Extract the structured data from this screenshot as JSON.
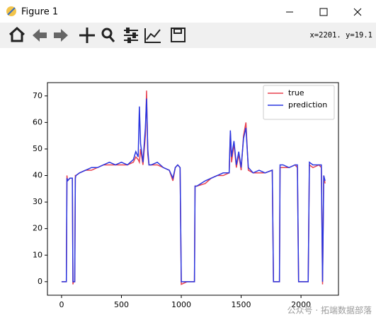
{
  "window": {
    "title": "Figure 1",
    "status": "x=2201.  y=19.1"
  },
  "watermark": "公众号 · 拓端数据部落",
  "chart_data": {
    "type": "line",
    "x": [
      0,
      40,
      45,
      50,
      70,
      90,
      95,
      100,
      110,
      115,
      120,
      150,
      200,
      250,
      300,
      350,
      400,
      450,
      500,
      550,
      600,
      620,
      640,
      650,
      660,
      680,
      700,
      710,
      720,
      730,
      750,
      800,
      850,
      900,
      930,
      950,
      970,
      990,
      1000,
      1050,
      1110,
      1115,
      1130,
      1200,
      1250,
      1300,
      1350,
      1400,
      1410,
      1420,
      1440,
      1460,
      1480,
      1500,
      1520,
      1540,
      1560,
      1600,
      1650,
      1700,
      1760,
      1770,
      1800,
      1820,
      1825,
      1850,
      1900,
      1950,
      1970,
      1980,
      2000,
      2060,
      2070,
      2100,
      2150,
      2170,
      2180,
      2190,
      2201
    ],
    "series": [
      {
        "name": "true",
        "color": "#e8414f",
        "values": [
          0,
          0,
          40,
          38,
          39,
          39,
          -1,
          0,
          0,
          40,
          40,
          41,
          42,
          42,
          43,
          44,
          44,
          44,
          44,
          44,
          45,
          47,
          46,
          45,
          50,
          44,
          55,
          72,
          48,
          44,
          44,
          44,
          43,
          42,
          38,
          43,
          44,
          43,
          -1,
          0,
          0,
          36,
          36,
          37,
          39,
          40,
          40,
          41,
          56,
          45,
          52,
          43,
          48,
          42,
          55,
          60,
          42,
          41,
          41,
          41,
          42,
          0,
          0,
          0,
          43,
          43,
          43,
          44,
          43,
          0,
          0,
          0,
          44,
          43,
          44,
          43,
          -1,
          40,
          37
        ]
      },
      {
        "name": "prediction",
        "color": "#2a36e0",
        "values": [
          0,
          0,
          39,
          38,
          39,
          39,
          0,
          0,
          0,
          39,
          40,
          41,
          42,
          43,
          43,
          44,
          45,
          44,
          45,
          44,
          46,
          49,
          47,
          66,
          52,
          45,
          58,
          69,
          50,
          44,
          44,
          45,
          43,
          42,
          39,
          43,
          44,
          43,
          0,
          0,
          0,
          36,
          36,
          38,
          39,
          40,
          41,
          41,
          57,
          47,
          53,
          44,
          49,
          43,
          54,
          58,
          43,
          41,
          42,
          41,
          42,
          0,
          0,
          0,
          44,
          44,
          43,
          44,
          44,
          0,
          0,
          0,
          45,
          44,
          44,
          44,
          0,
          40,
          38
        ]
      }
    ],
    "xlim": [
      -118,
      2313
    ],
    "ylim": [
      -5.1,
      75
    ],
    "xticks": [
      0,
      500,
      1000,
      1500,
      2000
    ],
    "yticks": [
      0,
      10,
      20,
      30,
      40,
      50,
      60,
      70
    ],
    "legend": "upper right"
  }
}
